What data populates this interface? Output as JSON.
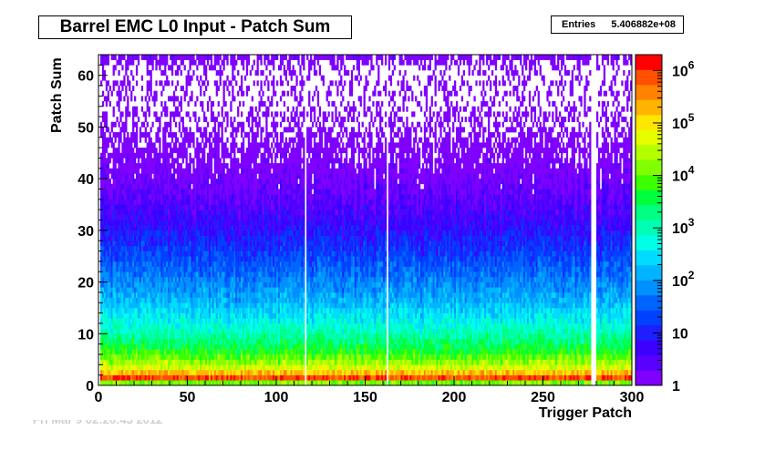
{
  "title": "Barrel EMC L0 Input - Patch Sum",
  "stats": {
    "label": "Entries",
    "value": "5.406882e+08"
  },
  "footer_text": "Fri Mar 9 02:20:43 2012",
  "colors": {
    "palette": [
      "#7f00ff",
      "#5a00ff",
      "#3c00ff",
      "#1e1eff",
      "#0040ff",
      "#0064ff",
      "#0090ff",
      "#00b4ff",
      "#00dcff",
      "#00ffe6",
      "#00ffb4",
      "#00ff82",
      "#00ff3c",
      "#3cff00",
      "#82ff00",
      "#b4ff00",
      "#e6ff00",
      "#ffe600",
      "#ffb400",
      "#ff8200",
      "#ff5000",
      "#ff0000"
    ],
    "frame": "#000000",
    "background": "#ffffff"
  },
  "chart_data": {
    "type": "heatmap",
    "title": "Barrel EMC L0 Input - Patch Sum",
    "xlabel": "Trigger Patch",
    "ylabel": "Patch Sum",
    "xlim": [
      0,
      300
    ],
    "ylim": [
      0,
      64
    ],
    "x_ticks": [
      0,
      50,
      100,
      150,
      200,
      250,
      300
    ],
    "y_ticks": [
      0,
      10,
      20,
      30,
      40,
      50,
      60
    ],
    "z_scale": "log",
    "z_range": [
      1,
      2000000
    ],
    "z_ticks": [
      {
        "value": 1,
        "base": "1",
        "exp": ""
      },
      {
        "value": 10,
        "base": "10",
        "exp": ""
      },
      {
        "value": 100,
        "base": "10",
        "exp": "2"
      },
      {
        "value": 1000,
        "base": "10",
        "exp": "3"
      },
      {
        "value": 10000,
        "base": "10",
        "exp": "4"
      },
      {
        "value": 100000,
        "base": "10",
        "exp": "5"
      },
      {
        "value": 1000000,
        "base": "10",
        "exp": "6"
      }
    ],
    "empty_patches": [
      0,
      116,
      162,
      277,
      278,
      279
    ],
    "profile": [
      {
        "sum": 0,
        "count": 100
      },
      {
        "sum": 1,
        "count": 1500000
      },
      {
        "sum": 2,
        "count": 400000
      },
      {
        "sum": 3,
        "count": 60000
      },
      {
        "sum": 5,
        "count": 12000
      },
      {
        "sum": 8,
        "count": 2500
      },
      {
        "sum": 12,
        "count": 500
      },
      {
        "sum": 16,
        "count": 150
      },
      {
        "sum": 20,
        "count": 60
      },
      {
        "sum": 25,
        "count": 20
      },
      {
        "sum": 30,
        "count": 7
      },
      {
        "sum": 35,
        "count": 3
      },
      {
        "sum": 40,
        "count": 1.5
      },
      {
        "sum": 45,
        "count": 0.8
      },
      {
        "sum": 50,
        "count": 0.4
      },
      {
        "sum": 55,
        "count": 0.3
      },
      {
        "sum": 62,
        "count": 0.25
      },
      {
        "sum": 63,
        "count": 1
      }
    ],
    "entries": "5.406882e+08"
  }
}
